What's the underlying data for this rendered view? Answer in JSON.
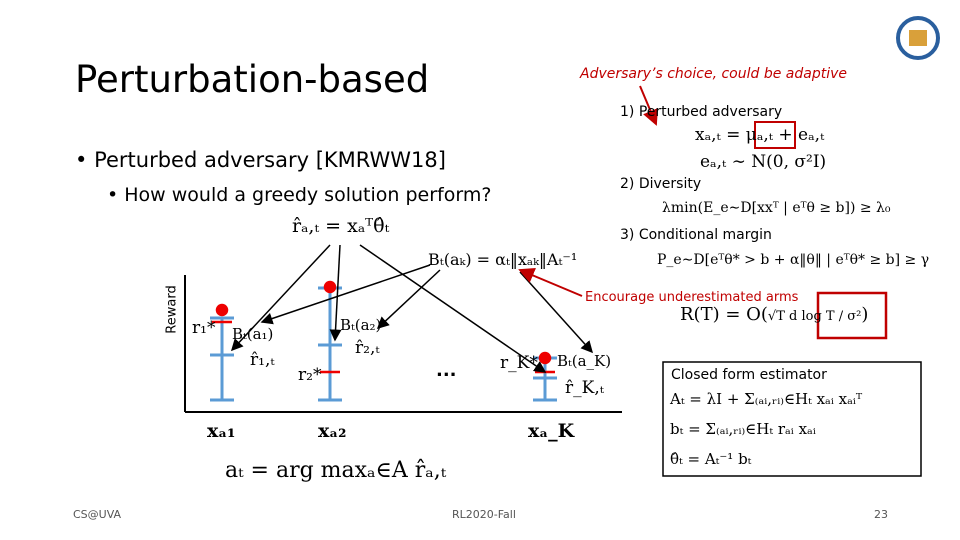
{
  "header": {
    "title": "Perturbation-based"
  },
  "bullets": [
    {
      "text": "Perturbed adversary [KMRWW18]",
      "sub": "How would a greedy solution perform?"
    }
  ],
  "annotation": "Adversary’s choice, could be adaptive",
  "conditions": [
    {
      "label": "1) Perturbed adversary",
      "formulas": [
        "xₐ,ₜ = μₐ,ₜ + eₐ,ₜ",
        "eₐ,ₜ ∼ N(0, σ²I)"
      ]
    },
    {
      "label": "2) Diversity",
      "formulas": [
        "λmin(E_e∼D[xxᵀ | eᵀθ ≥ b]) ≥ λ₀"
      ]
    },
    {
      "label": "3) Conditional margin",
      "formulas": [
        "P_e∼D[eᵀθ* > b + α‖θ‖ | eᵀθ* ≥ b] ≥ γ"
      ]
    }
  ],
  "regret": {
    "note": "Encourage underestimated arms",
    "formula": "R(T) = O(",
    "boxed": "√T d log T / σ²",
    "close": ")"
  },
  "estimator": {
    "title": "Closed form estimator",
    "lines": [
      "Aₜ = λI + Σ₍ₐᵢ,ᵣᵢ₎∈Hₜ xₐᵢ xₐᵢᵀ",
      "bₜ = Σ₍ₐᵢ,ᵣᵢ₎∈Hₜ rₐᵢ xₐᵢ",
      "θ̂ₜ = Aₜ⁻¹ bₜ"
    ]
  },
  "diagram": {
    "axis": "Reward",
    "prediction": "r̂ₐ,ₜ = xₐᵀθ̂ₜ",
    "bonus": "Bₜ(aₖ) = αₜ‖xₐₖ‖Aₜ⁻¹",
    "decision": "aₜ = arg maxₐ∈A r̂ₐ,ₜ",
    "ellipsis": "...",
    "arms": [
      {
        "x": "xₐ₁",
        "star": "r₁*",
        "bound": "Bₜ(a₁)",
        "est": "r̂₁,ₜ"
      },
      {
        "x": "xₐ₂",
        "star": "r₂*",
        "bound": "Bₜ(a₂)",
        "est": "r̂₂,ₜ"
      },
      {
        "x": "xₐ_K",
        "star": "r_K*",
        "bound": "Bₜ(a_K)",
        "est": "r̂_K,ₜ"
      }
    ]
  },
  "footer": {
    "left": "CS@UVA",
    "center": "RL2020-Fall",
    "page": "23"
  }
}
